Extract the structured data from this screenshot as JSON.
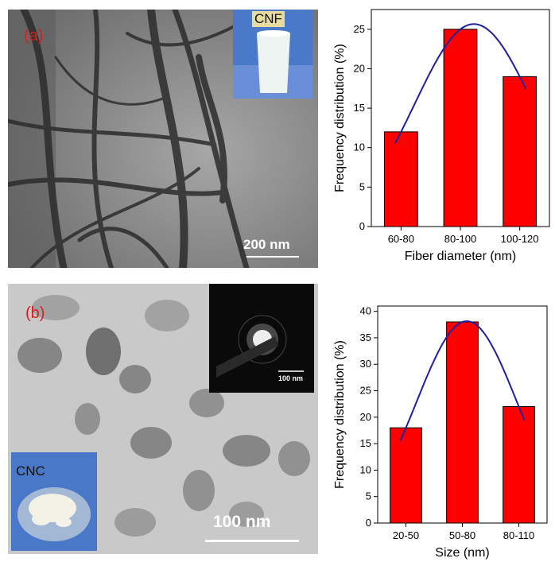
{
  "panel_a": {
    "label": "(a)",
    "scale_bar": "200 nm",
    "inset_label": "CNF"
  },
  "panel_b": {
    "label": "(b)",
    "scale_bar": "100 nm",
    "inset_scale": "100 nm",
    "inset_label": "CNC"
  },
  "colors": {
    "bar": "#ff0000",
    "curve": "#1f1fa0",
    "label": "#d81e1e"
  },
  "chart_data": [
    {
      "type": "bar",
      "categories": [
        "60-80",
        "80-100",
        "100-120"
      ],
      "values": [
        12,
        25,
        19
      ],
      "xlabel": "Fiber diameter (nm)",
      "ylabel": "Frequency distribution (%)",
      "ylim": [
        0,
        27.5
      ],
      "yticks": [
        0,
        5,
        10,
        15,
        20,
        25
      ],
      "fit_curve": "gaussian",
      "grid": false
    },
    {
      "type": "bar",
      "categories": [
        "20-50",
        "50-80",
        "80-110"
      ],
      "values": [
        18,
        38,
        22
      ],
      "xlabel": "Size (nm)",
      "ylabel": "Frequency distribution (%)",
      "ylim": [
        0,
        41
      ],
      "yticks": [
        0,
        5,
        10,
        15,
        20,
        25,
        30,
        35,
        40
      ],
      "fit_curve": "gaussian",
      "grid": false
    }
  ]
}
